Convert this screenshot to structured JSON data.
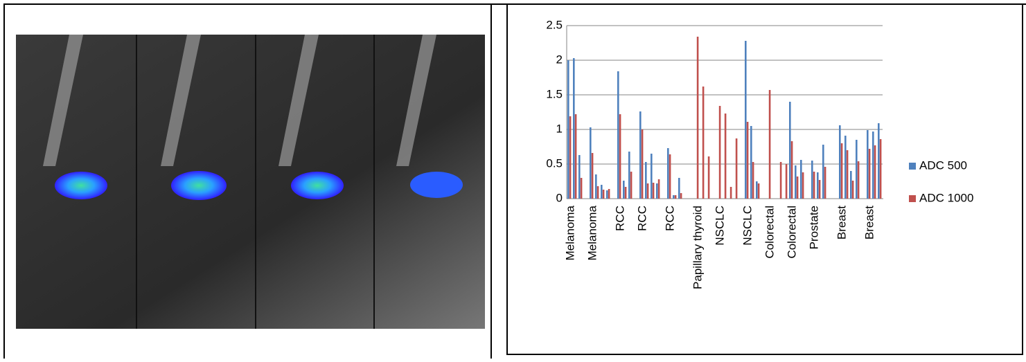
{
  "chart_data": {
    "type": "bar",
    "categories": [
      "Melanoma",
      null,
      null,
      null,
      "Melanoma",
      null,
      null,
      null,
      null,
      "RCC",
      null,
      null,
      null,
      "RCC",
      null,
      null,
      null,
      null,
      "RCC",
      null,
      null,
      null,
      null,
      "Papillary thyroid",
      null,
      null,
      null,
      "NSCLC",
      null,
      null,
      null,
      null,
      "NSCLC",
      null,
      null,
      null,
      "Colorectal",
      null,
      null,
      null,
      "Colorectal",
      null,
      null,
      null,
      "Prostate",
      null,
      null,
      null,
      null,
      "Breast",
      null,
      null,
      null,
      null,
      "Breast",
      null,
      null
    ],
    "series": [
      {
        "name": "ADC 500",
        "color": "#4f81bd",
        "values": [
          2.0,
          2.03,
          0.63,
          null,
          1.03,
          0.35,
          0.2,
          0.12,
          null,
          1.84,
          0.26,
          0.68,
          null,
          1.26,
          0.53,
          0.65,
          0.22,
          null,
          0.73,
          0.05,
          0.3,
          null,
          null,
          null,
          null,
          null,
          null,
          null,
          null,
          null,
          null,
          null,
          2.28,
          1.05,
          0.25,
          null,
          null,
          null,
          null,
          null,
          1.4,
          0.48,
          0.56,
          null,
          0.55,
          0.38,
          0.78,
          null,
          null,
          1.06,
          0.91,
          0.4,
          0.85,
          null,
          0.99,
          0.97,
          1.09
        ]
      },
      {
        "name": "ADC 1000",
        "color": "#c0504d",
        "values": [
          1.19,
          1.22,
          0.3,
          null,
          0.66,
          0.18,
          0.13,
          0.14,
          null,
          1.22,
          0.17,
          0.39,
          null,
          1.0,
          0.22,
          0.23,
          0.28,
          null,
          0.64,
          0.05,
          0.08,
          null,
          null,
          2.34,
          1.62,
          0.61,
          null,
          1.34,
          1.23,
          0.17,
          0.87,
          null,
          1.11,
          0.53,
          0.22,
          null,
          1.57,
          null,
          0.53,
          0.5,
          0.83,
          0.32,
          0.38,
          null,
          0.39,
          0.27,
          0.46,
          null,
          null,
          0.8,
          0.7,
          0.26,
          0.54,
          null,
          0.72,
          0.77,
          0.86
        ]
      }
    ],
    "ylim": [
      0,
      2.5
    ],
    "yticks": [
      0,
      0.5,
      1,
      1.5,
      2,
      2.5
    ],
    "grid": true,
    "legend": "right"
  }
}
